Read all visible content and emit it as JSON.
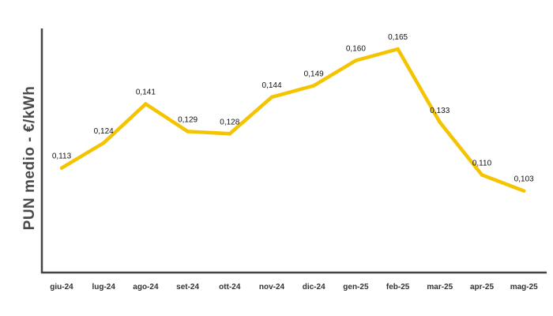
{
  "chart_data": {
    "type": "line",
    "title": "",
    "xlabel": "",
    "ylabel": "PUN medio - €/kWh",
    "categories": [
      "giu-24",
      "lug-24",
      "ago-24",
      "set-24",
      "ott-24",
      "nov-24",
      "dic-24",
      "gen-25",
      "feb-25",
      "mar-25",
      "apr-25",
      "mag-25"
    ],
    "series": [
      {
        "values": [
          0.113,
          0.124,
          0.141,
          0.129,
          0.128,
          0.144,
          0.149,
          0.16,
          0.165,
          0.133,
          0.11,
          0.103
        ],
        "labels": [
          "0,113",
          "0,124",
          "0,141",
          "0,129",
          "0,128",
          "0,144",
          "0,149",
          "0,160",
          "0,165",
          "0,133",
          "0,110",
          "0,103"
        ]
      }
    ],
    "ylim": [
      0.067,
      0.174
    ],
    "grid": false,
    "legend": "none",
    "line_color": "#f5c400",
    "axis_color": "#444444"
  }
}
